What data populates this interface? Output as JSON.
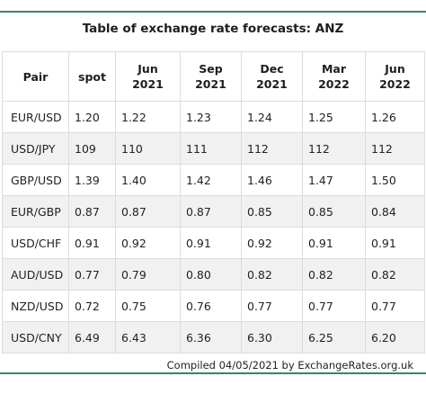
{
  "title": "Table of exchange rate forecasts: ANZ",
  "columns": [
    {
      "line1": "Pair",
      "line2": ""
    },
    {
      "line1": "spot",
      "line2": ""
    },
    {
      "line1": "Jun",
      "line2": "2021"
    },
    {
      "line1": "Sep",
      "line2": "2021"
    },
    {
      "line1": "Dec",
      "line2": "2021"
    },
    {
      "line1": "Mar",
      "line2": "2022"
    },
    {
      "line1": "Jun",
      "line2": "2022"
    }
  ],
  "rows": [
    [
      "EUR/USD",
      "1.20",
      "1.22",
      "1.23",
      "1.24",
      "1.25",
      "1.26"
    ],
    [
      "USD/JPY",
      "109",
      "110",
      "111",
      "112",
      "112",
      "112"
    ],
    [
      "GBP/USD",
      "1.39",
      "1.40",
      "1.42",
      "1.46",
      "1.47",
      "1.50"
    ],
    [
      "EUR/GBP",
      "0.87",
      "0.87",
      "0.87",
      "0.85",
      "0.85",
      "0.84"
    ],
    [
      "USD/CHF",
      "0.91",
      "0.92",
      "0.91",
      "0.92",
      "0.91",
      "0.91"
    ],
    [
      "AUD/USD",
      "0.77",
      "0.79",
      "0.80",
      "0.82",
      "0.82",
      "0.82"
    ],
    [
      "NZD/USD",
      "0.72",
      "0.75",
      "0.76",
      "0.77",
      "0.77",
      "0.77"
    ],
    [
      "USD/CNY",
      "6.49",
      "6.43",
      "6.36",
      "6.30",
      "6.25",
      "6.20"
    ]
  ],
  "footer": "Compiled 04/05/2021 by ExchangeRates.org.uk",
  "colors": {
    "accent": "#2a8a6e",
    "row_alt": "#f1f1f1",
    "grid": "#dcdcdc"
  }
}
